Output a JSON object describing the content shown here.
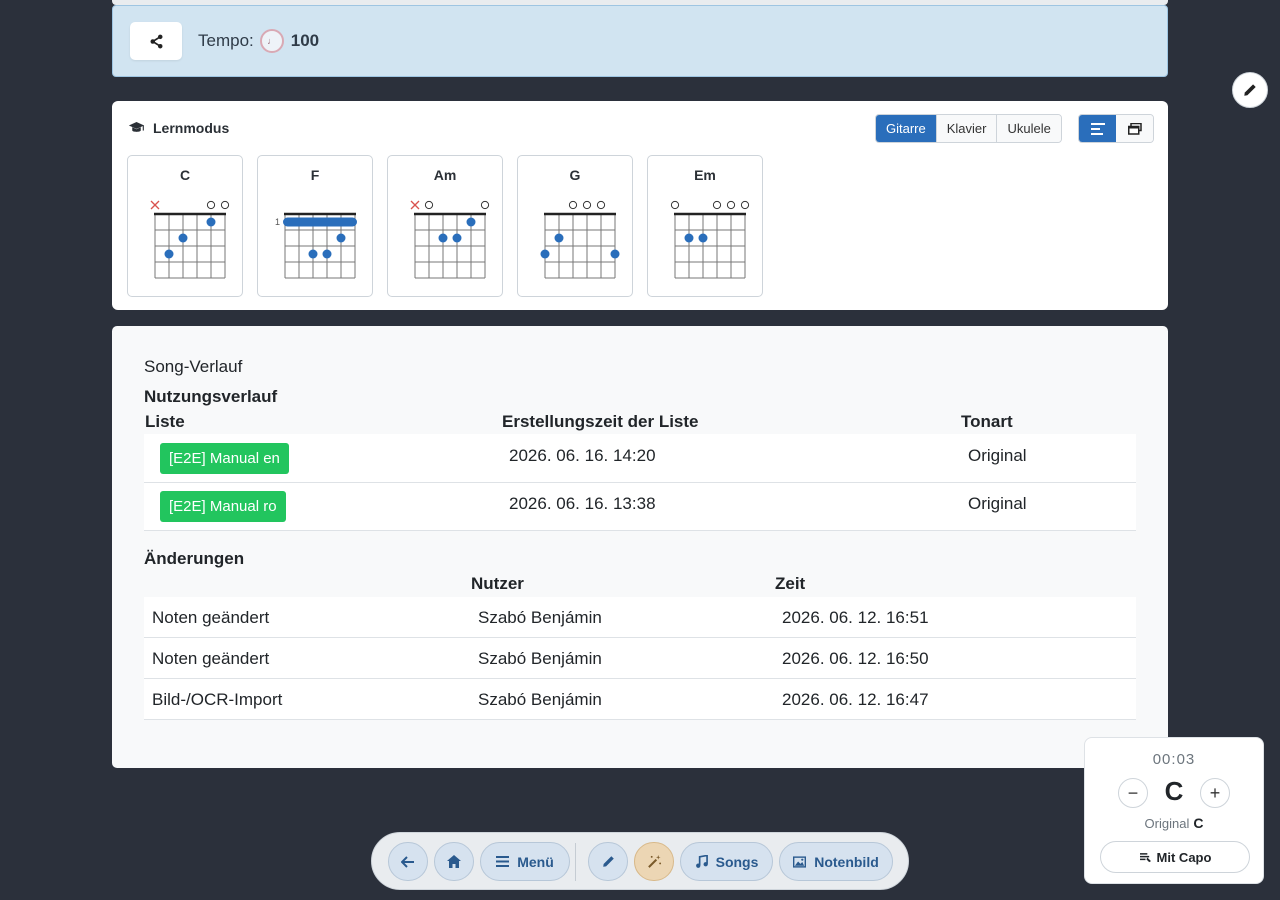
{
  "tempo": {
    "label": "Tempo:",
    "value": "100",
    "note_glyph": "♩"
  },
  "learn": {
    "title": "Lernmodus",
    "instruments": [
      "Gitarre",
      "Klavier",
      "Ukulele"
    ],
    "active_instrument": "Gitarre",
    "chords": [
      {
        "name": "C",
        "strings": [
          "x",
          "",
          "",
          "",
          "o",
          "o"
        ],
        "fret_label": "",
        "dots": [
          [
            2,
            3
          ],
          [
            3,
            2
          ],
          [
            5,
            1
          ]
        ]
      },
      {
        "name": "F",
        "strings": [
          "",
          "",
          "",
          "",
          "",
          ""
        ],
        "fret_label": "1",
        "barre": 1,
        "dots": [
          [
            3,
            3
          ],
          [
            4,
            3
          ],
          [
            5,
            2
          ]
        ]
      },
      {
        "name": "Am",
        "strings": [
          "x",
          "o",
          "",
          "",
          "",
          "o"
        ],
        "fret_label": "",
        "dots": [
          [
            3,
            2
          ],
          [
            4,
            2
          ],
          [
            5,
            1
          ]
        ]
      },
      {
        "name": "G",
        "strings": [
          "",
          "",
          "o",
          "o",
          "o",
          ""
        ],
        "fret_label": "",
        "dots": [
          [
            1,
            3
          ],
          [
            2,
            2
          ],
          [
            6,
            3
          ]
        ]
      },
      {
        "name": "Em",
        "strings": [
          "o",
          "",
          "",
          "o",
          "o",
          "o"
        ],
        "fret_label": "",
        "dots": [
          [
            2,
            2
          ],
          [
            3,
            2
          ]
        ]
      }
    ]
  },
  "history": {
    "title": "Song-Verlauf",
    "usage_title": "Nutzungsverlauf",
    "usage_headers": [
      "Liste",
      "Erstellungszeit der Liste",
      "Tonart"
    ],
    "usage_rows": [
      {
        "list": "[E2E] Manual en",
        "time": "2026. 06. 16. 14:20",
        "key": "Original"
      },
      {
        "list": "[E2E] Manual ro",
        "time": "2026. 06. 16. 13:38",
        "key": "Original"
      }
    ],
    "changes_title": "Änderungen",
    "changes_headers": [
      "Nutzer",
      "Zeit"
    ],
    "changes_rows": [
      {
        "action": "Noten geändert",
        "user": "Szabó Benjámin",
        "time": "2026. 06. 12. 16:51"
      },
      {
        "action": "Noten geändert",
        "user": "Szabó Benjámin",
        "time": "2026. 06. 12. 16:50"
      },
      {
        "action": "Bild-/OCR-Import",
        "user": "Szabó Benjámin",
        "time": "2026. 06. 12. 16:47"
      }
    ]
  },
  "nav": {
    "menu": "Menü",
    "songs": "Songs",
    "notenbild": "Notenbild"
  },
  "capo": {
    "time": "00:03",
    "key": "C",
    "minus": "−",
    "plus": "+",
    "original_label": "Original",
    "original_key": "C",
    "button": "Mit Capo"
  },
  "colors": {
    "accent": "#2a6ebb",
    "badge": "#22c55e",
    "dot": "#2a6ebb",
    "mute": "#d9534f"
  }
}
